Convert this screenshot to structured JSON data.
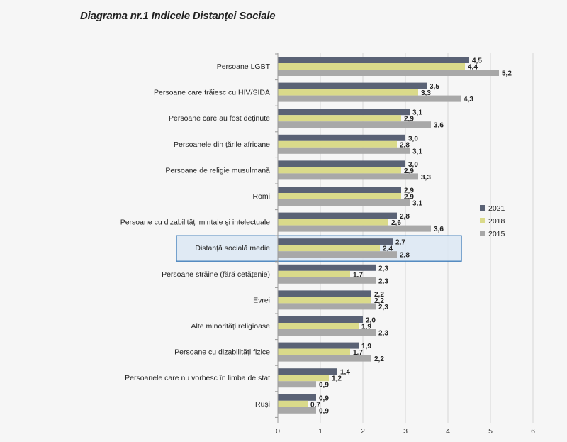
{
  "page_title": "Diagrama nr.1 Indicele Distanței Sociale",
  "chart_data": {
    "type": "bar",
    "orientation": "horizontal",
    "title": "Diagrama nr.1 Indicele Distanței Sociale",
    "categories": [
      "Persoane LGBT",
      "Persoane care trăiesc cu HIV/SIDA",
      "Persoane care au fost deținute",
      "Persoanele din țările africane",
      "Persoane de religie musulmană",
      "Romi",
      "Persoane cu dizabilități mintale și intelectuale",
      "Distanță socială medie",
      "Persoane străine (fără cetățenie)",
      "Evrei",
      "Alte minorități religioase",
      "Persoane cu dizabilități fizice",
      "Persoanele care nu vorbesc în limba de stat",
      "Ruși"
    ],
    "series": [
      {
        "name": "2021",
        "color": "#5a6275",
        "values": [
          4.5,
          3.5,
          3.1,
          3.0,
          3.0,
          2.9,
          2.8,
          2.7,
          2.3,
          2.2,
          2.0,
          1.9,
          1.4,
          0.9
        ],
        "labels": [
          "4,5",
          "3,5",
          "3,1",
          "3,0",
          "3,0",
          "2,9",
          "2,8",
          "2,7",
          "2,3",
          "2,2",
          "2,0",
          "1,9",
          "1,4",
          "0,9"
        ]
      },
      {
        "name": "2018",
        "color": "#dada8a",
        "values": [
          4.4,
          3.3,
          2.9,
          2.8,
          2.9,
          2.9,
          2.6,
          2.4,
          1.7,
          2.2,
          1.9,
          1.7,
          1.2,
          0.7
        ],
        "labels": [
          "4,4",
          "3,3",
          "2,9",
          "2,8",
          "2,9",
          "2,9",
          "2,6",
          "2,4",
          "1,7",
          "2,2",
          "1,9",
          "1,7",
          "1,2",
          "0,7"
        ]
      },
      {
        "name": "2015",
        "color": "#a8a8a8",
        "values": [
          5.2,
          4.3,
          3.6,
          3.1,
          3.3,
          3.1,
          3.6,
          2.8,
          2.3,
          2.3,
          2.3,
          2.2,
          0.9,
          0.9
        ],
        "labels": [
          "5,2",
          "4,3",
          "3,6",
          "3,1",
          "3,3",
          "3,1",
          "3,6",
          "2,8",
          "2,3",
          "2,3",
          "2,3",
          "2,2",
          "0,9",
          "0,9"
        ]
      }
    ],
    "highlighted_category": "Distanță socială medie",
    "highlight_color": "#3a7ab8",
    "xlim": [
      0,
      6
    ],
    "xticks": [
      "0",
      "1",
      "2",
      "3",
      "4",
      "5",
      "6"
    ],
    "grid": true,
    "legend_position": "right"
  }
}
